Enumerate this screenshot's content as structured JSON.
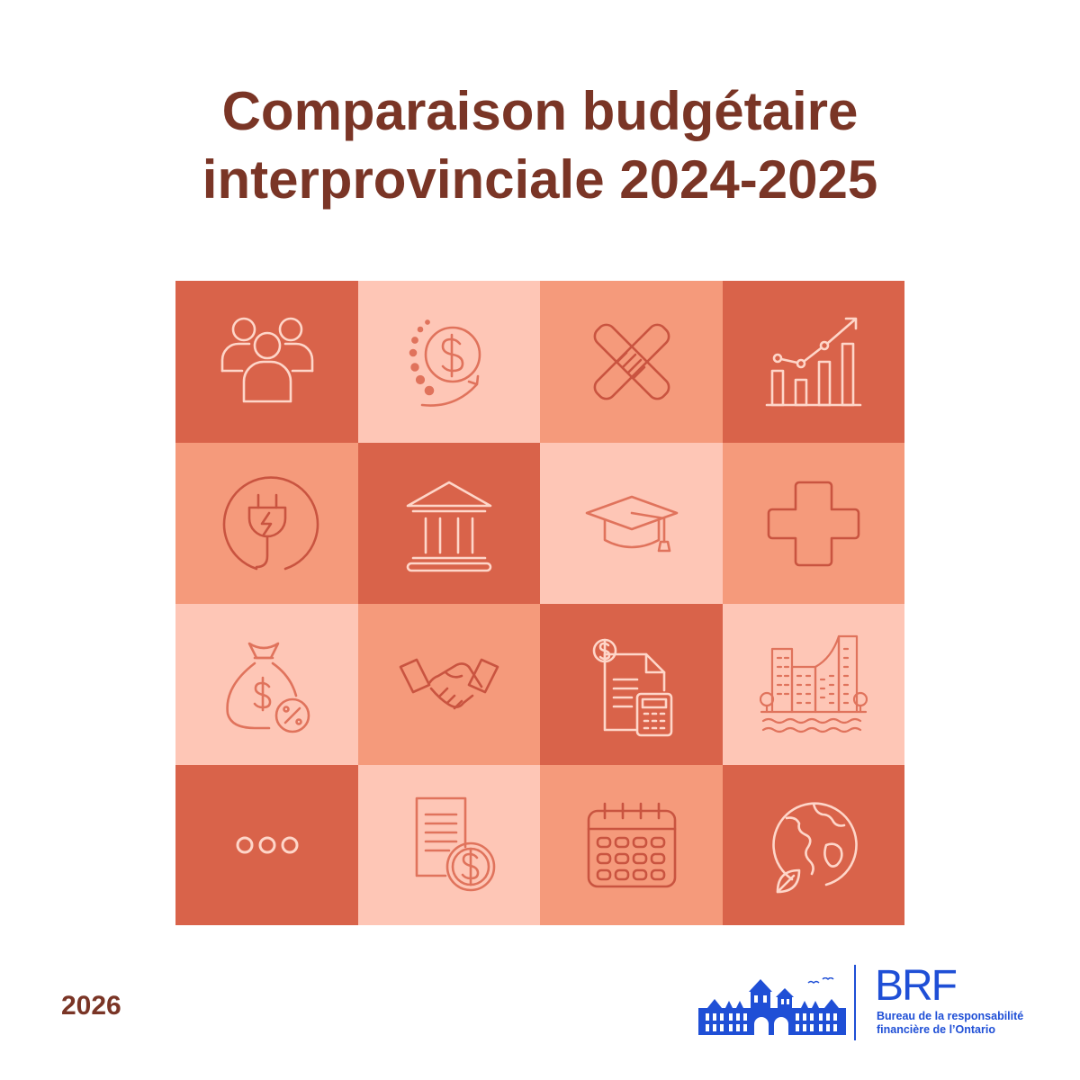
{
  "title": {
    "line1": "Comparaison budgétaire",
    "line2": "interprovinciale 2024-2025"
  },
  "year": "2026",
  "colors": {
    "title": "#7a3526",
    "tile_dark": "#d9634a",
    "tile_medium": "#f59a7b",
    "tile_light": "#fec6b6",
    "brand": "#1f4fd6"
  },
  "tiles": [
    {
      "icon": "people-group-icon",
      "shade": "dark"
    },
    {
      "icon": "dollar-growth-icon",
      "shade": "light"
    },
    {
      "icon": "stacked-hands-icon",
      "shade": "medium"
    },
    {
      "icon": "bar-chart-growth-icon",
      "shade": "dark"
    },
    {
      "icon": "power-plug-icon",
      "shade": "medium"
    },
    {
      "icon": "government-building-icon",
      "shade": "dark"
    },
    {
      "icon": "graduation-cap-icon",
      "shade": "light"
    },
    {
      "icon": "health-cross-icon",
      "shade": "medium"
    },
    {
      "icon": "money-bag-percent-icon",
      "shade": "light"
    },
    {
      "icon": "handshake-icon",
      "shade": "medium"
    },
    {
      "icon": "invoice-calculator-icon",
      "shade": "dark"
    },
    {
      "icon": "city-buildings-icon",
      "shade": "light"
    },
    {
      "icon": "more-dots-icon",
      "shade": "dark"
    },
    {
      "icon": "document-dollar-icon",
      "shade": "light"
    },
    {
      "icon": "calendar-icon",
      "shade": "medium"
    },
    {
      "icon": "globe-leaf-icon",
      "shade": "dark"
    }
  ],
  "logo": {
    "acronym": "BRF",
    "name_line1": "Bureau de la responsabilité",
    "name_line2": "financière de l’Ontario"
  }
}
